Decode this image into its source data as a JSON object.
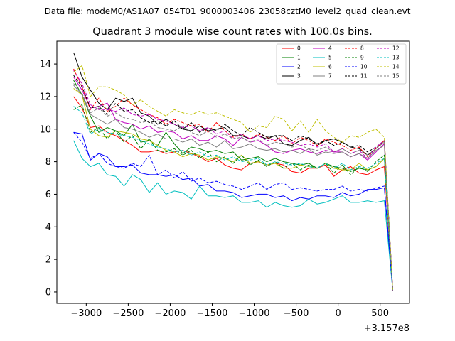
{
  "figure": {
    "suptitle": "Data file: modeM0/AS1A07_054T01_9000003406_23058cztM0_level2_quad_clean.evt"
  },
  "chart_data": {
    "type": "line",
    "title": "Quadrant 3 module wise count rates with 100.0s bins.",
    "xlabel": "",
    "ylabel": "",
    "x_offset_label": "+3.157e8",
    "xlim": [
      -3350,
      850
    ],
    "ylim": [
      -0.7,
      15.4
    ],
    "xticks": [
      -3000,
      -2500,
      -2000,
      -1500,
      -1000,
      -500,
      0,
      500
    ],
    "xtick_labels": [
      "−3000",
      "−2500",
      "−2000",
      "−1500",
      "−1000",
      "−500",
      "0",
      "500"
    ],
    "yticks": [
      0,
      2,
      4,
      6,
      8,
      10,
      12,
      14
    ],
    "ytick_labels": [
      "0",
      "2",
      "4",
      "6",
      "8",
      "10",
      "12",
      "14"
    ],
    "legend_position": "top-right",
    "x": [
      -3150,
      -3050,
      -2950,
      -2850,
      -2750,
      -2650,
      -2550,
      -2450,
      -2350,
      -2250,
      -2150,
      -2050,
      -1950,
      -1850,
      -1750,
      -1650,
      -1550,
      -1450,
      -1350,
      -1250,
      -1150,
      -1050,
      -950,
      -850,
      -750,
      -650,
      -550,
      -450,
      -350,
      -250,
      -150,
      -50,
      50,
      150,
      250,
      350,
      450,
      550,
      650
    ],
    "series": [
      {
        "name": "0",
        "color": "#ff0000",
        "dash": "solid",
        "values": [
          12.0,
          11.3,
          10.1,
          10.2,
          9.8,
          9.6,
          9.3,
          9.0,
          8.6,
          8.6,
          8.7,
          8.5,
          8.6,
          8.7,
          8.5,
          8.3,
          8.0,
          8.2,
          7.8,
          7.6,
          7.5,
          7.9,
          8.0,
          7.8,
          7.9,
          7.8,
          7.4,
          7.3,
          7.6,
          7.6,
          7.8,
          7.1,
          7.5,
          7.7,
          7.3,
          7.2,
          7.5,
          7.7,
          0.1
        ]
      },
      {
        "name": "1",
        "color": "#008000",
        "dash": "solid",
        "values": [
          13.0,
          12.1,
          10.8,
          9.8,
          10.1,
          9.9,
          9.6,
          10.3,
          9.2,
          9.3,
          9.0,
          9.8,
          9.1,
          8.5,
          8.9,
          8.8,
          8.6,
          8.7,
          8.5,
          8.6,
          8.1,
          8.2,
          8.3,
          8.0,
          8.2,
          8.0,
          7.9,
          7.8,
          7.9,
          7.6,
          7.9,
          7.7,
          7.6,
          7.4,
          7.6,
          7.5,
          7.7,
          8.2,
          0.1
        ]
      },
      {
        "name": "2",
        "color": "#0000ff",
        "dash": "solid",
        "values": [
          9.8,
          9.7,
          8.1,
          8.5,
          8.3,
          7.7,
          7.7,
          7.8,
          7.3,
          7.2,
          7.2,
          7.1,
          7.2,
          6.9,
          7.0,
          6.5,
          6.6,
          6.2,
          6.2,
          6.1,
          5.8,
          5.9,
          6.0,
          6.0,
          5.8,
          5.9,
          5.6,
          5.8,
          5.7,
          5.9,
          5.9,
          5.8,
          6.1,
          5.9,
          6.0,
          6.3,
          6.3,
          6.4,
          0.1
        ]
      },
      {
        "name": "3",
        "color": "#000000",
        "dash": "solid",
        "values": [
          14.7,
          13.2,
          12.4,
          11.6,
          11.2,
          11.9,
          11.7,
          11.9,
          11.0,
          10.8,
          10.3,
          10.6,
          10.3,
          10.0,
          9.9,
          10.2,
          9.9,
          10.0,
          10.1,
          9.6,
          9.6,
          9.4,
          9.6,
          9.4,
          9.6,
          9.1,
          9.0,
          9.3,
          9.5,
          9.0,
          9.3,
          9.4,
          9.2,
          8.9,
          8.8,
          8.4,
          8.8,
          9.3,
          0.1
        ]
      },
      {
        "name": "4",
        "color": "#bf00bf",
        "dash": "solid",
        "values": [
          13.2,
          12.4,
          11.3,
          11.4,
          11.6,
          10.6,
          10.4,
          10.3,
          10.0,
          10.2,
          9.8,
          9.9,
          9.8,
          9.4,
          9.6,
          9.3,
          9.3,
          9.6,
          9.4,
          9.0,
          9.5,
          9.2,
          9.3,
          9.0,
          8.6,
          8.5,
          8.7,
          8.8,
          8.6,
          8.5,
          8.7,
          8.6,
          8.6,
          8.3,
          8.5,
          8.1,
          8.6,
          9.1,
          0.1
        ]
      },
      {
        "name": "5",
        "color": "#00bfbf",
        "dash": "solid",
        "values": [
          9.3,
          8.2,
          7.7,
          7.9,
          7.2,
          7.1,
          6.5,
          7.2,
          6.9,
          6.1,
          6.7,
          6.0,
          6.2,
          6.1,
          5.7,
          6.5,
          5.9,
          5.9,
          5.8,
          5.9,
          5.5,
          5.5,
          5.6,
          5.2,
          5.5,
          5.3,
          5.2,
          5.3,
          5.7,
          5.4,
          5.5,
          5.7,
          5.9,
          5.5,
          5.5,
          5.6,
          5.5,
          5.6,
          0.1
        ]
      },
      {
        "name": "6",
        "color": "#bfbf00",
        "dash": "solid",
        "values": [
          12.5,
          12.1,
          10.0,
          9.6,
          9.5,
          9.9,
          9.8,
          9.7,
          9.4,
          9.3,
          9.0,
          8.7,
          8.6,
          8.3,
          8.5,
          8.4,
          8.1,
          8.3,
          8.2,
          8.0,
          8.4,
          7.9,
          8.0,
          7.8,
          7.9,
          7.6,
          7.6,
          7.8,
          7.7,
          7.6,
          7.9,
          7.6,
          7.5,
          7.5,
          7.9,
          7.5,
          7.7,
          8.2,
          0.1
        ]
      },
      {
        "name": "7",
        "color": "#808080",
        "dash": "solid",
        "values": [
          12.7,
          12.1,
          10.9,
          10.6,
          10.3,
          10.6,
          10.1,
          10.0,
          9.8,
          9.5,
          9.7,
          9.4,
          9.4,
          9.2,
          9.4,
          9.0,
          9.2,
          8.9,
          9.3,
          8.8,
          8.9,
          9.1,
          8.8,
          8.7,
          8.8,
          8.6,
          8.7,
          8.5,
          8.8,
          8.4,
          8.6,
          8.5,
          8.6,
          8.3,
          8.5,
          8.2,
          8.7,
          9.0,
          0.1
        ]
      },
      {
        "name": "8",
        "color": "#ff0000",
        "dash": "dashed",
        "values": [
          13.7,
          12.6,
          11.2,
          11.9,
          11.1,
          11.4,
          11.9,
          11.5,
          11.2,
          10.9,
          10.7,
          10.3,
          10.6,
          10.4,
          10.2,
          10.3,
          9.8,
          10.4,
          9.9,
          9.5,
          9.7,
          9.4,
          9.7,
          9.5,
          9.3,
          9.6,
          9.1,
          9.5,
          9.3,
          9.0,
          9.4,
          9.2,
          9.0,
          8.7,
          8.9,
          8.3,
          8.8,
          9.3,
          0.1
        ]
      },
      {
        "name": "9",
        "color": "#008000",
        "dash": "dashed",
        "values": [
          11.2,
          11.5,
          9.8,
          10.1,
          9.4,
          9.9,
          9.2,
          9.6,
          8.8,
          9.4,
          8.7,
          8.6,
          8.8,
          8.4,
          8.7,
          8.2,
          8.6,
          8.0,
          8.3,
          7.9,
          8.4,
          7.8,
          8.1,
          7.7,
          8.0,
          7.6,
          7.9,
          7.5,
          7.8,
          7.6,
          7.9,
          7.3,
          7.8,
          7.2,
          7.7,
          7.4,
          8.0,
          8.4,
          0.1
        ]
      },
      {
        "name": "10",
        "color": "#0000ff",
        "dash": "dashed",
        "values": [
          9.8,
          9.2,
          8.2,
          8.5,
          7.9,
          7.7,
          7.6,
          7.9,
          7.7,
          8.4,
          7.2,
          7.5,
          7.0,
          7.4,
          6.8,
          7.0,
          6.7,
          6.8,
          6.6,
          6.5,
          6.3,
          6.5,
          6.7,
          6.3,
          6.6,
          6.7,
          6.3,
          6.4,
          6.3,
          6.2,
          6.3,
          6.3,
          6.5,
          6.2,
          6.3,
          6.2,
          6.4,
          6.5,
          0.1
        ]
      },
      {
        "name": "11",
        "color": "#000000",
        "dash": "dashed",
        "values": [
          13.3,
          12.6,
          11.3,
          11.4,
          10.9,
          11.6,
          11.1,
          11.2,
          10.7,
          10.4,
          10.5,
          10.2,
          10.5,
          10.0,
          10.4,
          9.8,
          10.1,
          9.9,
          10.3,
          9.9,
          9.6,
          10.1,
          9.8,
          9.5,
          9.6,
          9.6,
          9.3,
          9.6,
          9.4,
          9.1,
          9.3,
          9.0,
          9.2,
          8.9,
          9.0,
          8.6,
          8.9,
          9.3,
          0.1
        ]
      },
      {
        "name": "12",
        "color": "#bf00bf",
        "dash": "dashed",
        "values": [
          13.6,
          12.8,
          11.5,
          11.2,
          11.2,
          11.1,
          11.3,
          10.9,
          10.8,
          10.9,
          10.6,
          10.5,
          10.3,
          10.1,
          10.2,
          9.9,
          10.1,
          9.7,
          9.9,
          9.4,
          9.7,
          9.4,
          9.6,
          9.3,
          9.4,
          9.3,
          9.2,
          9.0,
          9.1,
          8.9,
          9.1,
          8.6,
          8.8,
          8.5,
          8.7,
          8.2,
          8.9,
          9.3,
          0.1
        ]
      },
      {
        "name": "13",
        "color": "#00bfbf",
        "dash": "dashed",
        "values": [
          11.4,
          11.0,
          9.7,
          10.0,
          9.8,
          9.7,
          9.6,
          9.5,
          9.3,
          9.1,
          8.9,
          8.8,
          8.6,
          8.7,
          8.4,
          8.6,
          8.3,
          8.4,
          8.1,
          8.3,
          8.0,
          8.1,
          8.2,
          7.8,
          8.0,
          7.9,
          7.8,
          7.9,
          7.7,
          7.6,
          7.9,
          7.6,
          7.9,
          7.5,
          7.7,
          7.6,
          7.9,
          8.2,
          0.1
        ]
      },
      {
        "name": "14",
        "color": "#bfbf00",
        "dash": "dashed",
        "values": [
          13.5,
          13.9,
          12.0,
          12.6,
          12.6,
          12.4,
          12.1,
          11.5,
          11.8,
          11.4,
          11.1,
          10.8,
          11.2,
          11.0,
          10.9,
          11.1,
          10.9,
          11.0,
          10.8,
          10.6,
          10.4,
          9.8,
          10.2,
          10.1,
          10.8,
          10.6,
          9.9,
          10.5,
          9.8,
          10.6,
          9.9,
          9.5,
          9.2,
          9.6,
          9.5,
          9.8,
          10.0,
          9.5,
          0.1
        ]
      },
      {
        "name": "15",
        "color": "#808080",
        "dash": "dashed",
        "values": [
          12.8,
          12.2,
          11.0,
          11.3,
          10.8,
          11.0,
          10.7,
          10.6,
          10.4,
          10.5,
          10.1,
          10.0,
          9.9,
          10.2,
          9.8,
          9.6,
          9.9,
          9.5,
          9.7,
          9.4,
          9.5,
          9.2,
          9.4,
          9.0,
          9.2,
          9.1,
          8.9,
          9.0,
          8.8,
          8.7,
          8.9,
          8.6,
          8.8,
          8.5,
          8.7,
          8.4,
          8.8,
          9.2,
          0.1
        ]
      }
    ]
  }
}
